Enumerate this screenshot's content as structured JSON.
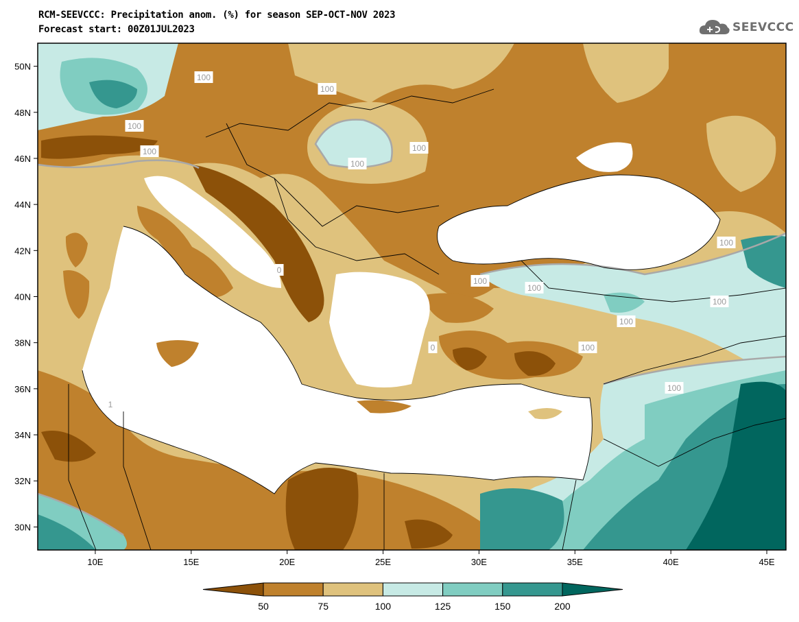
{
  "title": {
    "line1": "RCM-SEEVCCC: Precipitation anom. (%) for season SEP-OCT-NOV 2023",
    "line2": "Forecast start: 00Z01JUL2023"
  },
  "logo": {
    "text": "SEEVCCC",
    "icon": "cloud-logo-icon"
  },
  "map": {
    "lon_range": [
      7,
      46
    ],
    "lat_range": [
      29,
      51
    ],
    "lon_ticks": [
      "10E",
      "15E",
      "20E",
      "25E",
      "30E",
      "35E",
      "40E",
      "45E"
    ],
    "lat_ticks": [
      "50N",
      "48N",
      "46N",
      "44N",
      "42N",
      "40N",
      "38N",
      "36N",
      "34N",
      "32N",
      "30N"
    ],
    "contour_labels": [
      "100",
      "100",
      "100",
      "100",
      "100",
      "100",
      "100",
      "100",
      "100",
      "100",
      "100",
      "100",
      "100",
      "0",
      "0",
      "1"
    ]
  },
  "colorbar": {
    "ticks": [
      "50",
      "75",
      "100",
      "125",
      "150",
      "200"
    ],
    "colors": [
      "#8c5109",
      "#bf812d",
      "#dfc27d",
      "#c7eae5",
      "#80cdc1",
      "#35978f",
      "#01665e"
    ]
  },
  "palette": {
    "very_dry": "#8c5109",
    "dry": "#bf812d",
    "slightly_dry": "#dfc27d",
    "slightly_wet": "#c7eae5",
    "wet": "#80cdc1",
    "very_wet": "#35978f",
    "extreme_wet": "#01665e",
    "sea": "#ffffff",
    "contour100": "#a8a8a8"
  }
}
